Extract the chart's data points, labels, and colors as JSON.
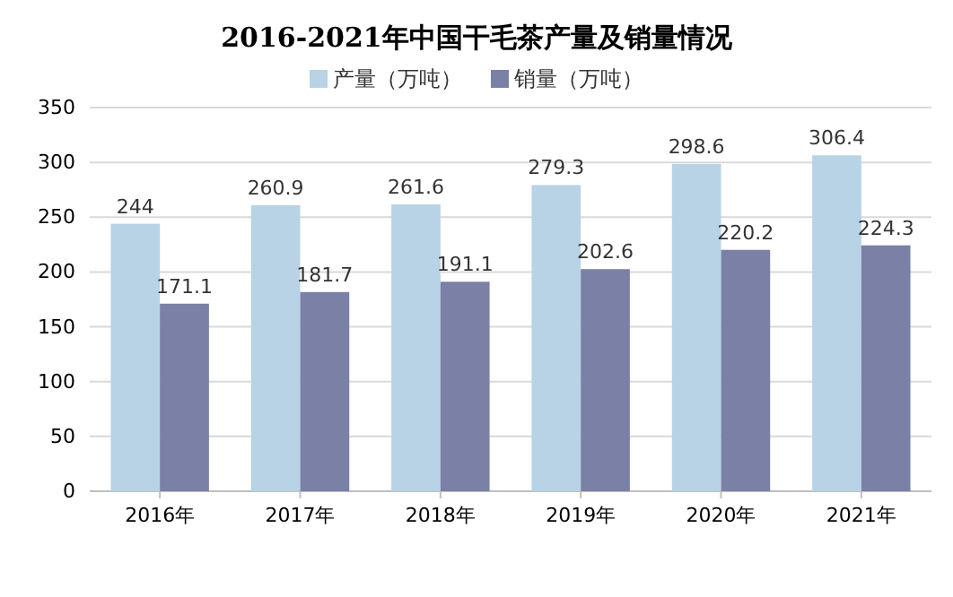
{
  "chart_data": {
    "type": "bar",
    "title": "2016-2021年中国干毛茶产量及销量情况",
    "categories": [
      "2016年",
      "2017年",
      "2018年",
      "2019年",
      "2020年",
      "2021年"
    ],
    "series": [
      {
        "name": "产量（万吨）",
        "color": "#b7d3e5",
        "values": [
          244,
          260.9,
          261.6,
          279.3,
          298.6,
          306.4
        ]
      },
      {
        "name": "销量（万吨）",
        "color": "#7a80a6",
        "values": [
          171.1,
          181.7,
          191.1,
          202.6,
          220.2,
          224.3
        ]
      }
    ],
    "ylim": [
      0,
      350
    ],
    "yticks": [
      0,
      50,
      100,
      150,
      200,
      250,
      300,
      350
    ],
    "grid": "y",
    "legend": "top",
    "data_labels": true
  }
}
